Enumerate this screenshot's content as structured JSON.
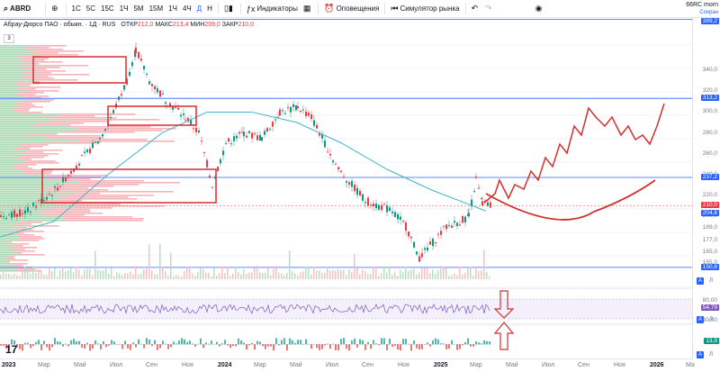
{
  "toolbar": {
    "symbol": "ABRD",
    "intervals": [
      "1С",
      "5С",
      "15С",
      "1Ч",
      "5М",
      "15М",
      "1Ч",
      "4Ч",
      "Д",
      "Н"
    ],
    "active_interval": "Д",
    "indicators_label": "Индикаторы",
    "alerts_label": "Оповещения",
    "replay_label": "Симулятор рынка",
    "account_label": "66RC morn",
    "account_sub": "Сохран"
  },
  "legend": {
    "title": "Абрау-Дюрсо ПАО · обыкн. · 1Д · RUS",
    "open_label": "ОТКР",
    "open_value": "212,0",
    "high_label": "МАКС",
    "high_value": "213,4",
    "low_label": "МИН",
    "low_value": "209,0",
    "close_label": "ЗАКР",
    "close_value": "210,0",
    "collapse_count": "3"
  },
  "price_axis": {
    "ticks": [
      "340,0",
      "320,0",
      "300,0",
      "280,0",
      "260,0",
      "240,0",
      "220,0",
      "200,0",
      "189,0",
      "177,0",
      "165,0",
      "155,0"
    ],
    "labels": [
      {
        "text": "389,2",
        "color": "#2962ff"
      },
      {
        "text": "313,2",
        "color": "#2962ff"
      },
      {
        "text": "237,2",
        "color": "#2962ff"
      },
      {
        "text": "210,0",
        "color": "#f23645"
      },
      {
        "text": "204,8",
        "color": "#2962ff"
      },
      {
        "text": "150,8",
        "color": "#2962ff"
      }
    ]
  },
  "rsi_axis": {
    "ticks": [
      "80,00",
      "30,00"
    ],
    "value": "54,79",
    "value_color": "#7e57c2"
  },
  "macd_axis": {
    "value": "13,9",
    "value_color": "#089981"
  },
  "time_axis": [
    "2023",
    "Мар",
    "Май",
    "Июл",
    "Сен",
    "Ноя",
    "2024",
    "Мар",
    "Май",
    "Июл",
    "Сен",
    "Ноя",
    "2025",
    "Мар",
    "Май",
    "Июл",
    "Сен",
    "Ноя",
    "2026",
    "Ма"
  ],
  "colors": {
    "up": "#089981",
    "down": "#f23645",
    "ma": "#3fb6c9",
    "annotation": "#d32f2f",
    "hline": "#2962ff",
    "rsi": "#7e57c2"
  },
  "icons": [
    "plus-icon",
    "compare-icon",
    "chart-type-icon",
    "indicators-icon",
    "layout-icon",
    "alert-icon",
    "replay-icon",
    "undo-icon",
    "redo-icon",
    "camera-icon"
  ]
}
